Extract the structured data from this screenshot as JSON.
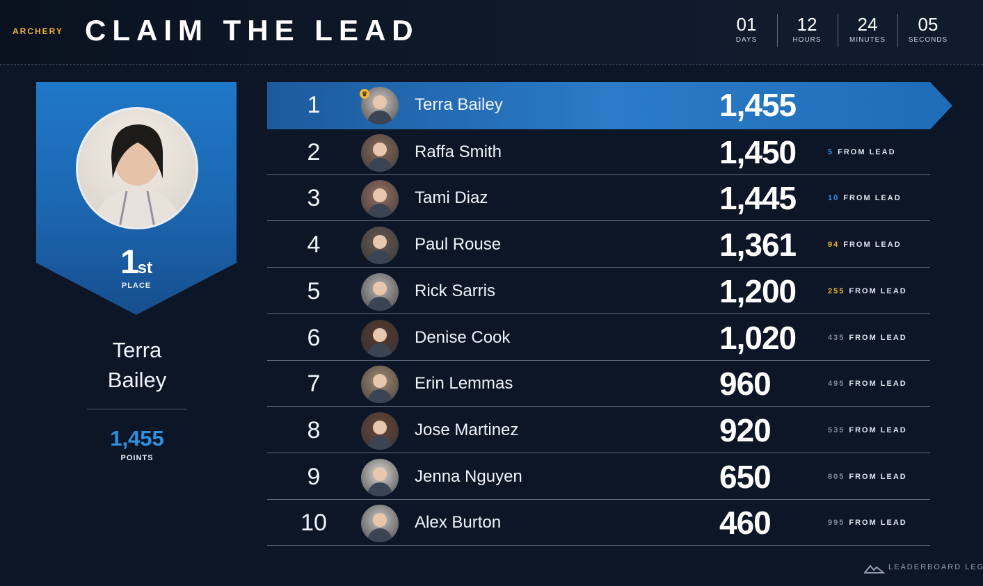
{
  "header": {
    "sport": "ARCHERY",
    "title": "CLAIM THE LEAD",
    "countdown": [
      {
        "value": "01",
        "label": "DAYS"
      },
      {
        "value": "12",
        "label": "HOURS"
      },
      {
        "value": "24",
        "label": "MINUTES"
      },
      {
        "value": "05",
        "label": "SECONDS"
      }
    ]
  },
  "champion": {
    "place_number": "1",
    "place_suffix": "st",
    "place_label": "PLACE",
    "name_line1": "Terra",
    "name_line2": "Bailey",
    "points": "1,455",
    "points_label": "POINTS"
  },
  "leaderboard": [
    {
      "rank": "1",
      "name": "Terra Bailey",
      "score": "1,455",
      "gap": "",
      "gap_suffix": "",
      "gap_color": "#ffffff",
      "avatar_color": "#cfc7bf"
    },
    {
      "rank": "2",
      "name": "Raffa Smith",
      "score": "1,450",
      "gap": "5",
      "gap_suffix": "FROM LEAD",
      "gap_color": "#2f8fe0",
      "avatar_color": "#8a6a55"
    },
    {
      "rank": "3",
      "name": "Tami Diaz",
      "score": "1,445",
      "gap": "10",
      "gap_suffix": "FROM LEAD",
      "gap_color": "#2f8fe0",
      "avatar_color": "#9a7060"
    },
    {
      "rank": "4",
      "name": "Paul Rouse",
      "score": "1,361",
      "gap": "94",
      "gap_suffix": "FROM LEAD",
      "gap_color": "#f2b53a",
      "avatar_color": "#6a5a4e"
    },
    {
      "rank": "5",
      "name": "Rick Sarris",
      "score": "1,200",
      "gap": "255",
      "gap_suffix": "FROM LEAD",
      "gap_color": "#f2b53a",
      "avatar_color": "#b9b3ad"
    },
    {
      "rank": "6",
      "name": "Denise Cook",
      "score": "1,020",
      "gap": "435",
      "gap_suffix": "FROM LEAD",
      "gap_color": "#7f8a99",
      "avatar_color": "#5a3a2c"
    },
    {
      "rank": "7",
      "name": "Erin Lemmas",
      "score": "960",
      "gap": "495",
      "gap_suffix": "FROM LEAD",
      "gap_color": "#7f8a99",
      "avatar_color": "#a58b6e"
    },
    {
      "rank": "8",
      "name": "Jose Martinez",
      "score": "920",
      "gap": "535",
      "gap_suffix": "FROM LEAD",
      "gap_color": "#7f8a99",
      "avatar_color": "#6b4636"
    },
    {
      "rank": "9",
      "name": "Jenna Nguyen",
      "score": "650",
      "gap": "805",
      "gap_suffix": "FROM LEAD",
      "gap_color": "#7f8a99",
      "avatar_color": "#ddd6cf"
    },
    {
      "rank": "10",
      "name": "Alex Burton",
      "score": "460",
      "gap": "995",
      "gap_suffix": "FROM LEAD",
      "gap_color": "#7f8a99",
      "avatar_color": "#c9c4bf"
    }
  ],
  "footer": {
    "brand": "LEADERBOARD LEGE",
    "brand_icon": "mountain-logo-icon"
  }
}
